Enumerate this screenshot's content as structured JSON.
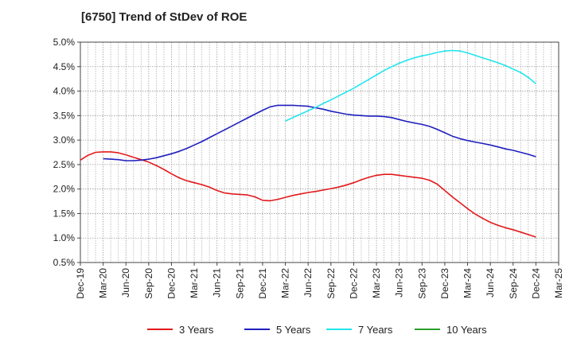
{
  "chart_data": {
    "type": "line",
    "title": "[6750]  Trend of StDev of ROE",
    "xlabel": "",
    "ylabel": "",
    "x_ticks": [
      "Dec-19",
      "Mar-20",
      "Jun-20",
      "Sep-20",
      "Dec-20",
      "Mar-21",
      "Jun-21",
      "Sep-21",
      "Dec-21",
      "Mar-22",
      "Jun-22",
      "Sep-22",
      "Dec-22",
      "Mar-23",
      "Jun-23",
      "Sep-23",
      "Dec-23",
      "Mar-24",
      "Jun-24",
      "Sep-24",
      "Dec-24",
      "Mar-25"
    ],
    "y_ticks": [
      "0.5%",
      "1.0%",
      "1.5%",
      "2.0%",
      "2.5%",
      "3.0%",
      "3.5%",
      "4.0%",
      "4.5%",
      "5.0%"
    ],
    "ylim": [
      0.5,
      5.0
    ],
    "y_unit": "%",
    "grid": true,
    "legend_position": "bottom",
    "series": [
      {
        "name": "3 Years",
        "color": "#e31a1c",
        "x": [
          "Dec-19",
          "Jan-20",
          "Feb-20",
          "Mar-20",
          "Apr-20",
          "May-20",
          "Jun-20",
          "Jul-20",
          "Aug-20",
          "Sep-20",
          "Oct-20",
          "Nov-20",
          "Dec-20",
          "Jan-21",
          "Feb-21",
          "Mar-21",
          "Apr-21",
          "May-21",
          "Jun-21",
          "Jul-21",
          "Aug-21",
          "Sep-21",
          "Oct-21",
          "Nov-21",
          "Dec-21",
          "Jan-22",
          "Feb-22",
          "Mar-22",
          "Apr-22",
          "May-22",
          "Jun-22",
          "Jul-22",
          "Aug-22",
          "Sep-22",
          "Oct-22",
          "Nov-22",
          "Dec-22",
          "Jan-23",
          "Feb-23",
          "Mar-23",
          "Apr-23",
          "May-23",
          "Jun-23",
          "Jul-23",
          "Aug-23",
          "Sep-23",
          "Oct-23",
          "Nov-23",
          "Dec-23",
          "Jan-24",
          "Feb-24",
          "Mar-24",
          "Apr-24",
          "May-24",
          "Jun-24",
          "Jul-24",
          "Aug-24",
          "Sep-24",
          "Oct-24",
          "Nov-24",
          "Dec-24"
        ],
        "values": [
          2.59,
          2.69,
          2.75,
          2.76,
          2.76,
          2.74,
          2.7,
          2.65,
          2.6,
          2.55,
          2.48,
          2.4,
          2.31,
          2.23,
          2.17,
          2.13,
          2.09,
          2.04,
          1.97,
          1.92,
          1.9,
          1.89,
          1.88,
          1.84,
          1.77,
          1.76,
          1.79,
          1.83,
          1.87,
          1.9,
          1.93,
          1.95,
          1.98,
          2.01,
          2.04,
          2.08,
          2.13,
          2.19,
          2.24,
          2.28,
          2.3,
          2.3,
          2.28,
          2.26,
          2.24,
          2.22,
          2.18,
          2.1,
          1.97,
          1.84,
          1.72,
          1.6,
          1.49,
          1.4,
          1.32,
          1.26,
          1.21,
          1.17,
          1.12,
          1.07,
          1.02
        ]
      },
      {
        "name": "5 Years",
        "color": "#1f1fbf",
        "x": [
          "Mar-20",
          "Apr-20",
          "May-20",
          "Jun-20",
          "Jul-20",
          "Aug-20",
          "Sep-20",
          "Oct-20",
          "Nov-20",
          "Dec-20",
          "Jan-21",
          "Feb-21",
          "Mar-21",
          "Apr-21",
          "May-21",
          "Jun-21",
          "Jul-21",
          "Aug-21",
          "Sep-21",
          "Oct-21",
          "Nov-21",
          "Dec-21",
          "Jan-22",
          "Feb-22",
          "Mar-22",
          "Apr-22",
          "May-22",
          "Jun-22",
          "Jul-22",
          "Aug-22",
          "Sep-22",
          "Oct-22",
          "Nov-22",
          "Dec-22",
          "Jan-23",
          "Feb-23",
          "Mar-23",
          "Apr-23",
          "May-23",
          "Jun-23",
          "Jul-23",
          "Aug-23",
          "Sep-23",
          "Oct-23",
          "Nov-23",
          "Dec-23",
          "Jan-24",
          "Feb-24",
          "Mar-24",
          "Apr-24",
          "May-24",
          "Jun-24",
          "Jul-24",
          "Aug-24",
          "Sep-24",
          "Oct-24",
          "Nov-24",
          "Dec-24"
        ],
        "values": [
          2.62,
          2.61,
          2.6,
          2.58,
          2.58,
          2.59,
          2.61,
          2.64,
          2.68,
          2.72,
          2.77,
          2.83,
          2.9,
          2.97,
          3.05,
          3.13,
          3.21,
          3.29,
          3.37,
          3.45,
          3.53,
          3.61,
          3.68,
          3.71,
          3.71,
          3.71,
          3.7,
          3.69,
          3.66,
          3.63,
          3.59,
          3.56,
          3.53,
          3.51,
          3.5,
          3.49,
          3.49,
          3.48,
          3.46,
          3.42,
          3.38,
          3.35,
          3.32,
          3.28,
          3.22,
          3.15,
          3.08,
          3.03,
          2.99,
          2.96,
          2.93,
          2.9,
          2.86,
          2.82,
          2.79,
          2.75,
          2.71,
          2.66
        ]
      },
      {
        "name": "7 Years",
        "color": "#22e5ec",
        "x": [
          "Mar-22",
          "Apr-22",
          "May-22",
          "Jun-22",
          "Jul-22",
          "Aug-22",
          "Sep-22",
          "Oct-22",
          "Nov-22",
          "Dec-22",
          "Jan-23",
          "Feb-23",
          "Mar-23",
          "Apr-23",
          "May-23",
          "Jun-23",
          "Jul-23",
          "Aug-23",
          "Sep-23",
          "Oct-23",
          "Nov-23",
          "Dec-23",
          "Jan-24",
          "Feb-24",
          "Mar-24",
          "Apr-24",
          "May-24",
          "Jun-24",
          "Jul-24",
          "Aug-24",
          "Sep-24",
          "Oct-24",
          "Nov-24",
          "Dec-24"
        ],
        "values": [
          3.39,
          3.46,
          3.53,
          3.6,
          3.67,
          3.75,
          3.82,
          3.9,
          3.98,
          4.06,
          4.15,
          4.24,
          4.33,
          4.42,
          4.5,
          4.57,
          4.63,
          4.68,
          4.72,
          4.75,
          4.79,
          4.82,
          4.83,
          4.82,
          4.78,
          4.73,
          4.68,
          4.63,
          4.58,
          4.52,
          4.45,
          4.38,
          4.28,
          4.15
        ]
      },
      {
        "name": "10 Years",
        "color": "#2ca02c",
        "x": [],
        "values": []
      }
    ]
  }
}
